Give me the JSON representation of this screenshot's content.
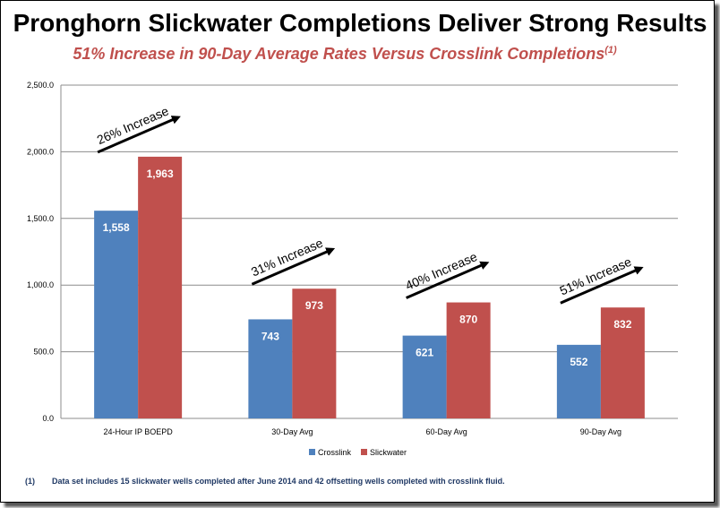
{
  "title": "Pronghorn Slickwater Completions Deliver Strong Results",
  "subtitle": "51% Increase in 90-Day Average Rates Versus Crosslink Completions",
  "subtitle_note": "(1)",
  "footnote": {
    "marker": "(1)",
    "text": "Data set includes 15 slickwater wells completed after June 2014 and 42 offsetting wells completed with crosslink fluid."
  },
  "chart_data": {
    "type": "bar",
    "categories": [
      "24-Hour IP BOEPD",
      "30-Day Avg",
      "60-Day Avg",
      "90-Day Avg"
    ],
    "series": [
      {
        "name": "Crosslink",
        "values": [
          1558,
          743,
          621,
          552
        ],
        "labels": [
          "1,558",
          "743",
          "621",
          "552"
        ],
        "color": "#4f81bd"
      },
      {
        "name": "Slickwater",
        "values": [
          1963,
          973,
          870,
          832
        ],
        "labels": [
          "1,963",
          "973",
          "870",
          "832"
        ],
        "color": "#c0504d"
      }
    ],
    "annotations": [
      "26% Increase",
      "31% Increase",
      "40% Increase",
      "51% Increase"
    ],
    "ylim": [
      0,
      2500
    ],
    "yticks": [
      0,
      500,
      1000,
      1500,
      2000,
      2500
    ],
    "ytick_labels": [
      "0.0",
      "500.0",
      "1,000.0",
      "1,500.0",
      "2,000.0",
      "2,500.0"
    ],
    "grid": true,
    "legend": "bottom"
  }
}
